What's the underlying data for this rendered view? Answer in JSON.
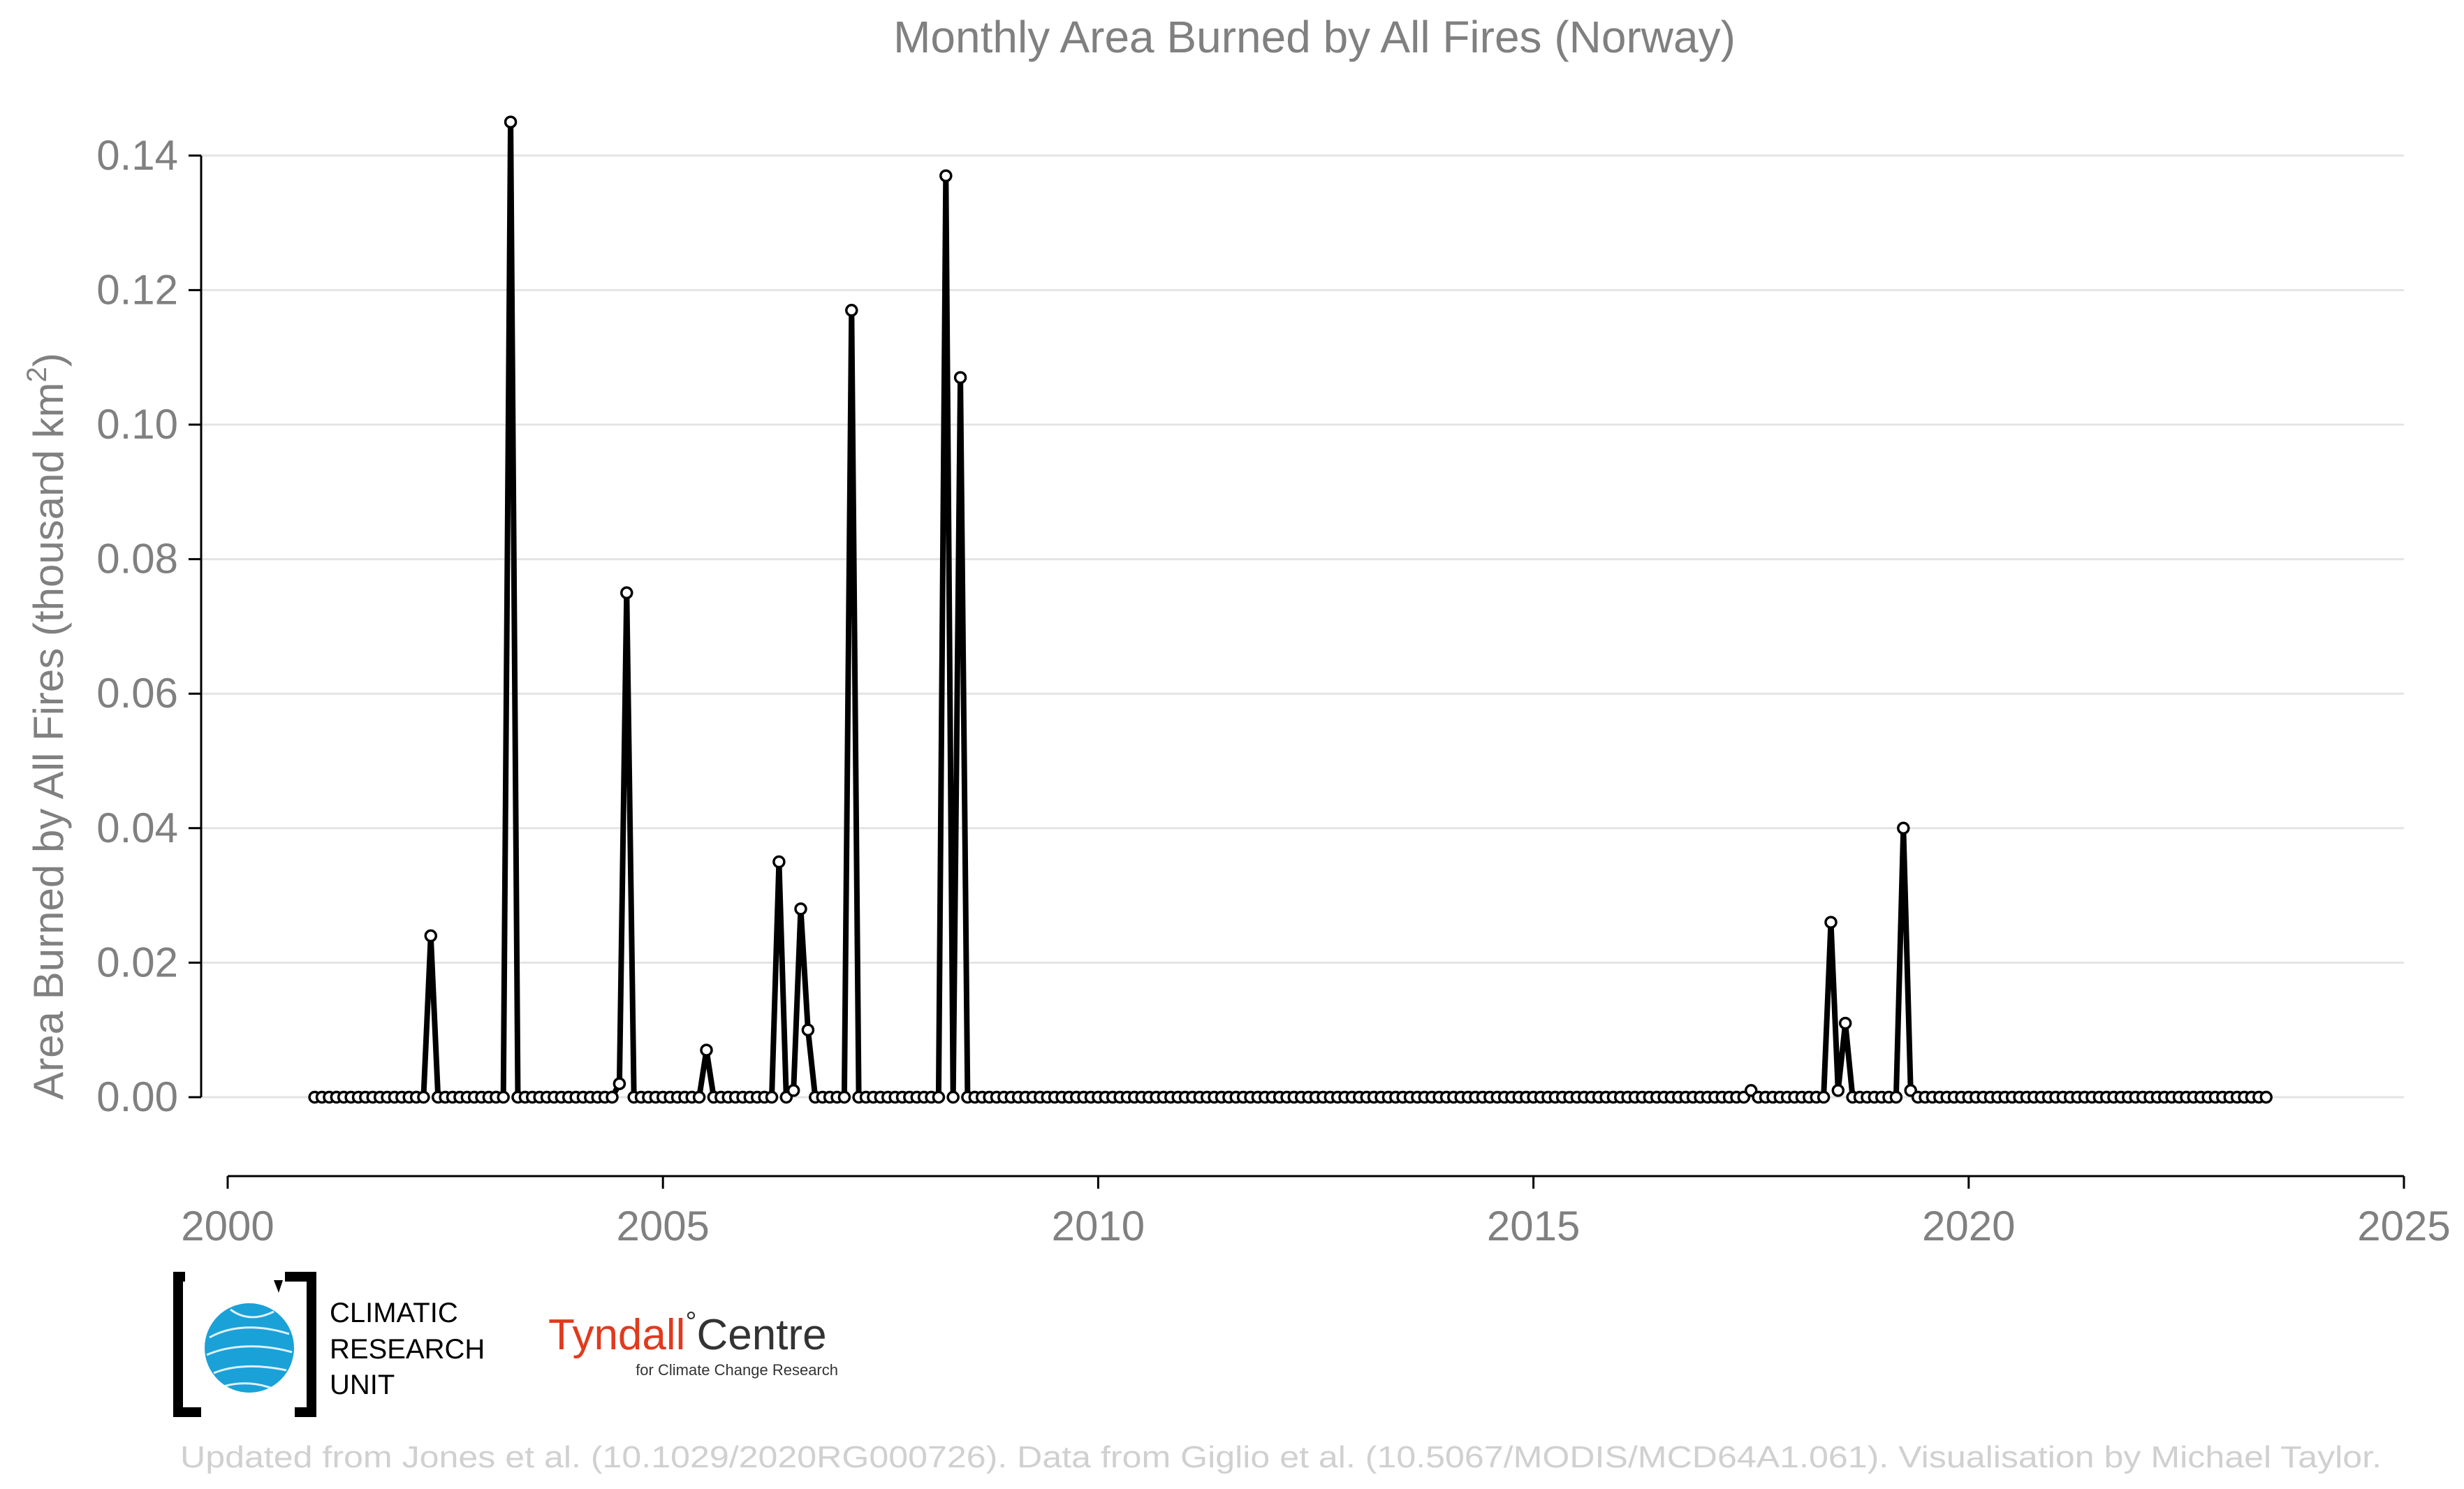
{
  "chart_data": {
    "type": "line",
    "title": "Monthly Area Burned by All Fires (Norway)",
    "ylabel": "Area Burned by All Fires (thousand km",
    "ylabel_sup": "2",
    "ylabel_end": ")",
    "xlabel": "",
    "xlim": [
      2000,
      2025
    ],
    "ylim": [
      -0.012,
      0.145
    ],
    "x_ticks": [
      2000,
      2005,
      2010,
      2015,
      2020,
      2025
    ],
    "y_ticks": [
      "0.00",
      "0.02",
      "0.04",
      "0.06",
      "0.08",
      "0.10",
      "0.12",
      "0.14"
    ],
    "grid": "horizontal",
    "legend": "none",
    "start": "2001-01",
    "frequency": "monthly",
    "series": [
      {
        "values": [
          0,
          0,
          0,
          0,
          0,
          0,
          0,
          0,
          0,
          0,
          0,
          0,
          0,
          0,
          0,
          0,
          0.024,
          0,
          0,
          0,
          0,
          0,
          0,
          0,
          0,
          0,
          0,
          0.145,
          0,
          0,
          0,
          0,
          0,
          0,
          0,
          0,
          0,
          0,
          0,
          0,
          0,
          0,
          0.002,
          0.075,
          0,
          0,
          0,
          0,
          0,
          0,
          0,
          0,
          0,
          0,
          0.007,
          0,
          0,
          0,
          0,
          0,
          0,
          0,
          0,
          0,
          0.035,
          0,
          0.001,
          0.028,
          0.01,
          0,
          0,
          0,
          0,
          0,
          0.117,
          0,
          0,
          0,
          0,
          0,
          0,
          0,
          0,
          0,
          0,
          0,
          0,
          0.137,
          0,
          0.107,
          0,
          0,
          0,
          0,
          0,
          0,
          0,
          0,
          0,
          0,
          0,
          0,
          0,
          0,
          0,
          0,
          0,
          0,
          0,
          0,
          0,
          0,
          0,
          0,
          0,
          0,
          0,
          0,
          0,
          0,
          0,
          0,
          0,
          0,
          0,
          0,
          0,
          0,
          0,
          0,
          0,
          0,
          0,
          0,
          0,
          0,
          0,
          0,
          0,
          0,
          0,
          0,
          0,
          0,
          0,
          0,
          0,
          0,
          0,
          0,
          0,
          0,
          0,
          0,
          0,
          0,
          0,
          0,
          0,
          0,
          0,
          0,
          0,
          0,
          0,
          0,
          0,
          0,
          0,
          0,
          0,
          0,
          0,
          0,
          0,
          0,
          0,
          0,
          0,
          0,
          0,
          0,
          0,
          0,
          0,
          0,
          0,
          0,
          0,
          0,
          0,
          0,
          0,
          0,
          0,
          0,
          0,
          0,
          0.001,
          0,
          0,
          0,
          0,
          0,
          0,
          0,
          0,
          0,
          0,
          0.026,
          0.001,
          0.011,
          0,
          0,
          0,
          0,
          0,
          0,
          0,
          0.04,
          0.001,
          0,
          0,
          0,
          0,
          0,
          0,
          0,
          0,
          0,
          0,
          0,
          0,
          0,
          0,
          0,
          0,
          0,
          0,
          0,
          0,
          0,
          0,
          0,
          0,
          0,
          0,
          0,
          0,
          0,
          0,
          0,
          0,
          0,
          0,
          0,
          0,
          0,
          0,
          0,
          0,
          0,
          0,
          0,
          0,
          0,
          0,
          0,
          0,
          0
        ]
      }
    ]
  },
  "logos": {
    "cru_lines": [
      "CLIMATIC",
      "RESEARCH",
      "UNIT"
    ],
    "tyndall_name": "Tyndall",
    "tyndall_degree": "°",
    "tyndall_centre": "Centre",
    "tyndall_sub": "for Climate Change Research"
  },
  "credit": "Updated from Jones et al. (10.1029/2020RG000726). Data from Giglio et al. (10.5067/MODIS/MCD64A1.061). Visualisation by Michael Taylor.",
  "colors": {
    "line": "#000000",
    "title": "#808080",
    "grid": "#e4e4e4",
    "credit": "#d0d0d0",
    "globe": "#1aa1d8",
    "tyndall_red": "#e03a1e"
  }
}
